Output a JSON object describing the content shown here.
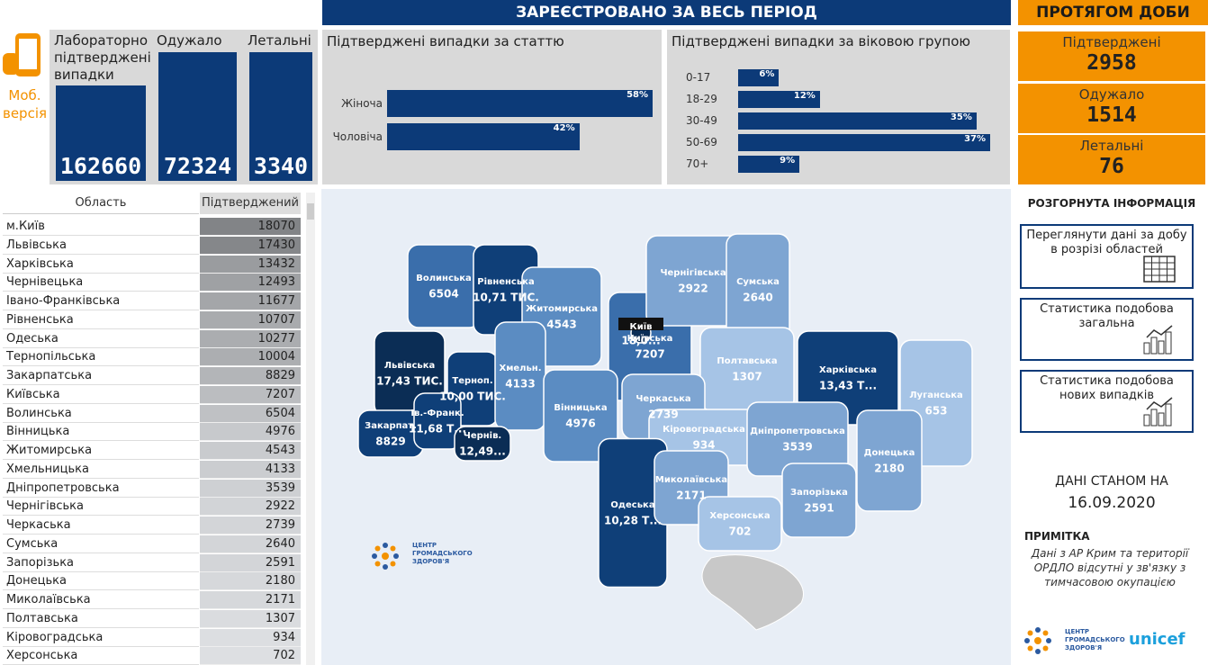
{
  "header": {
    "title": "ЗАРЕЄСТРОВАНО ЗА ВЕСЬ ПЕРІОД",
    "daily_title": "ПРОТЯГОМ ДОБИ"
  },
  "mobile": [
    "Моб.",
    "версія"
  ],
  "totals": [
    {
      "label": "Лабораторно підтверджені випадки",
      "value": 162660
    },
    {
      "label": "Одужало",
      "value": 72324
    },
    {
      "label": "Летальні",
      "value": 3340
    }
  ],
  "daily": [
    {
      "label": "Підтверджені",
      "value": 2958
    },
    {
      "label": "Одужало",
      "value": 1514
    },
    {
      "label": "Летальні",
      "value": 76
    }
  ],
  "chart_data": [
    {
      "type": "bar",
      "orientation": "horizontal",
      "title": "Підтверджені випадки за статтю",
      "categories": [
        "Жіноча",
        "Чоловіча"
      ],
      "values": [
        58,
        42
      ],
      "value_labels": [
        "58%",
        "42%"
      ],
      "color": "#0c3a78"
    },
    {
      "type": "bar",
      "orientation": "horizontal",
      "title": "Підтверджені випадки за віковою групою",
      "categories": [
        "0-17",
        "18-29",
        "30-49",
        "50-69",
        "70+"
      ],
      "values": [
        6,
        12,
        35,
        37,
        9
      ],
      "value_labels": [
        "6%",
        "12%",
        "35%",
        "37%",
        "9%"
      ],
      "color": "#0c3a78"
    }
  ],
  "table": {
    "columns": [
      "Область",
      "Підтверджений"
    ],
    "rows": [
      [
        "м.Київ",
        18070
      ],
      [
        "Львівська",
        17430
      ],
      [
        "Харківська",
        13432
      ],
      [
        "Чернівецька",
        12493
      ],
      [
        "Івано-Франківська",
        11677
      ],
      [
        "Рівненська",
        10707
      ],
      [
        "Одеська",
        10277
      ],
      [
        "Тернопільська",
        10004
      ],
      [
        "Закарпатська",
        8829
      ],
      [
        "Київська",
        7207
      ],
      [
        "Волинська",
        6504
      ],
      [
        "Вінницька",
        4976
      ],
      [
        "Житомирська",
        4543
      ],
      [
        "Хмельницька",
        4133
      ],
      [
        "Дніпропетровська",
        3539
      ],
      [
        "Чернігівська",
        2922
      ],
      [
        "Черкаська",
        2739
      ],
      [
        "Сумська",
        2640
      ],
      [
        "Запорізька",
        2591
      ],
      [
        "Донецька",
        2180
      ],
      [
        "Миколаївська",
        2171
      ],
      [
        "Полтавська",
        1307
      ],
      [
        "Кіровоградська",
        934
      ],
      [
        "Херсонська",
        702
      ]
    ]
  },
  "map": {
    "regions": [
      {
        "name": "Волинська",
        "label": "6504",
        "color": "#3a6eab"
      },
      {
        "name": "Рівненська",
        "label": "10,71 ТИС.",
        "color": "#0f3f78"
      },
      {
        "name": "Житомирська",
        "label": "4543",
        "color": "#5b8cc2"
      },
      {
        "name": "Київська",
        "label": "7207",
        "color": "#3a6eab"
      },
      {
        "name": "Чернігівська",
        "label": "2922",
        "color": "#7ea5d2"
      },
      {
        "name": "Сумська",
        "label": "2640",
        "color": "#7ea5d2"
      },
      {
        "name": "Полтавська",
        "label": "1307",
        "color": "#a6c4e6"
      },
      {
        "name": "Харківська",
        "label": "13,43 Т...",
        "color": "#0f3f78"
      },
      {
        "name": "Луганська",
        "label": "653",
        "color": "#a6c4e6"
      },
      {
        "name": "Львівська",
        "label": "17,43 ТИС.",
        "color": "#0b2d55"
      },
      {
        "name": "Терноп.",
        "label": "10,00 ТИС.",
        "color": "#0f3f78"
      },
      {
        "name": "Хмельн.",
        "label": "4133",
        "color": "#5b8cc2"
      },
      {
        "name": "Вінницька",
        "label": "4976",
        "color": "#5b8cc2"
      },
      {
        "name": "Черкаська",
        "label": "2739",
        "color": "#7ea5d2"
      },
      {
        "name": "Кіровоградська",
        "label": "934",
        "color": "#a6c4e6"
      },
      {
        "name": "Дніпропетровська",
        "label": "3539",
        "color": "#7ea5d2"
      },
      {
        "name": "Донецька",
        "label": "2180",
        "color": "#7ea5d2"
      },
      {
        "name": "Закарпат.",
        "label": "8829",
        "color": "#0f3f78"
      },
      {
        "name": "Ів.-Франк.",
        "label": "11,68 Т...",
        "color": "#0f3f78"
      },
      {
        "name": "Чернів.",
        "label": "12,49...",
        "color": "#0b2d55"
      },
      {
        "name": "Одеська",
        "label": "10,28 Т...",
        "color": "#0f3f78"
      },
      {
        "name": "Миколаївська",
        "label": "2171",
        "color": "#7ea5d2"
      },
      {
        "name": "Запорізька",
        "label": "2591",
        "color": "#7ea5d2"
      },
      {
        "name": "Херсонська",
        "label": "702",
        "color": "#a6c4e6"
      },
      {
        "name": "Київ",
        "label": "18,0...",
        "color": "#0b2d55"
      }
    ],
    "logo": [
      "ЦЕНТР",
      "ГРОМАДСЬКОГО",
      "ЗДОРОВ'Я"
    ]
  },
  "side": {
    "title": "РОЗГОРНУТА ІНФОРМАЦІЯ",
    "buttons": [
      "Переглянути дані за добу в розрізі областей",
      "Статистика подобова загальна",
      "Статистика подобова нових випадків"
    ],
    "date_label": "ДАНІ СТАНОМ НА",
    "date": "16.09.2020",
    "note_title": "ПРИМІТКА",
    "note": "Дані з АР Крим та території ОРДЛО відсутні у зв'язку з тимчасовою окупацією",
    "logo": [
      "ЦЕНТР",
      "ГРОМАДСЬКОГО",
      "ЗДОРОВ'Я"
    ],
    "unicef": "unicef"
  }
}
